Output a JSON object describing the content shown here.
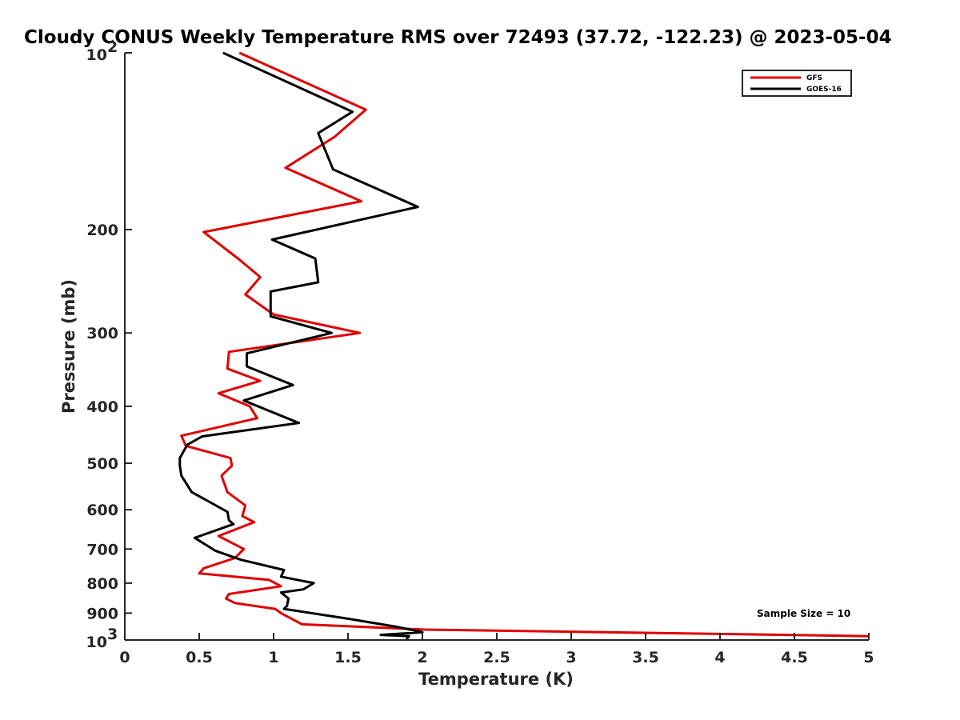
{
  "chart_data": {
    "type": "line",
    "title": "Cloudy CONUS Weekly Temperature RMS over 72493 (37.72, -122.23) @ 2023-05-04",
    "xlabel": "Temperature (K)",
    "ylabel": "Pressure (mb)",
    "xlim": [
      0,
      5
    ],
    "ylim": [
      1000,
      100
    ],
    "y_scale": "log",
    "y_reversed": true,
    "x_ticks": [
      "0",
      "0.5",
      "1",
      "1.5",
      "2",
      "2.5",
      "3",
      "3.5",
      "4",
      "4.5",
      "5"
    ],
    "x_tick_values": [
      0,
      0.5,
      1,
      1.5,
      2,
      2.5,
      3,
      3.5,
      4,
      4.5,
      5
    ],
    "y_ticks": [
      {
        "value": 100,
        "base": "10",
        "exp": "2"
      },
      {
        "value": 200,
        "label": "200"
      },
      {
        "value": 300,
        "label": "300"
      },
      {
        "value": 400,
        "label": "400"
      },
      {
        "value": 500,
        "label": "500"
      },
      {
        "value": 600,
        "label": "600"
      },
      {
        "value": 700,
        "label": "700"
      },
      {
        "value": 800,
        "label": "800"
      },
      {
        "value": 900,
        "label": "900"
      },
      {
        "value": 1000,
        "base": "10",
        "exp": "3"
      }
    ],
    "grid": false,
    "legend_position": "top-right",
    "annotation": "Sample Size = 10",
    "series": [
      {
        "name": "GFS",
        "color": "#e00000",
        "points": [
          [
            0.77,
            100
          ],
          [
            1.62,
            125
          ],
          [
            1.41,
            139
          ],
          [
            1.08,
            157
          ],
          [
            1.59,
            179
          ],
          [
            0.53,
            202
          ],
          [
            0.77,
            225
          ],
          [
            0.91,
            241
          ],
          [
            0.81,
            258
          ],
          [
            1.0,
            279
          ],
          [
            1.58,
            300
          ],
          [
            0.7,
            323
          ],
          [
            0.69,
            345
          ],
          [
            0.91,
            362
          ],
          [
            0.63,
            380
          ],
          [
            0.84,
            400
          ],
          [
            0.89,
            419
          ],
          [
            0.38,
            449
          ],
          [
            0.41,
            467
          ],
          [
            0.71,
            490
          ],
          [
            0.72,
            505
          ],
          [
            0.65,
            525
          ],
          [
            0.69,
            560
          ],
          [
            0.81,
            590
          ],
          [
            0.79,
            615
          ],
          [
            0.87,
            630
          ],
          [
            0.63,
            665
          ],
          [
            0.8,
            700
          ],
          [
            0.74,
            725
          ],
          [
            0.53,
            755
          ],
          [
            0.5,
            770
          ],
          [
            0.97,
            790
          ],
          [
            1.05,
            810
          ],
          [
            0.7,
            835
          ],
          [
            0.68,
            850
          ],
          [
            0.74,
            865
          ],
          [
            1.01,
            885
          ],
          [
            1.05,
            900
          ],
          [
            1.19,
            940
          ],
          [
            2.02,
            960
          ],
          [
            5.0,
            985
          ]
        ]
      },
      {
        "name": "GOES-16",
        "color": "#000000",
        "points": [
          [
            0.66,
            100
          ],
          [
            1.53,
            126
          ],
          [
            1.3,
            137
          ],
          [
            1.4,
            158
          ],
          [
            1.97,
            183
          ],
          [
            0.99,
            208
          ],
          [
            1.28,
            224
          ],
          [
            1.3,
            246
          ],
          [
            0.98,
            255
          ],
          [
            0.98,
            281
          ],
          [
            1.39,
            300
          ],
          [
            0.82,
            325
          ],
          [
            0.82,
            342
          ],
          [
            1.13,
            368
          ],
          [
            0.8,
            391
          ],
          [
            1.17,
            427
          ],
          [
            0.52,
            450
          ],
          [
            0.42,
            465
          ],
          [
            0.37,
            490
          ],
          [
            0.37,
            505
          ],
          [
            0.38,
            525
          ],
          [
            0.45,
            560
          ],
          [
            0.69,
            605
          ],
          [
            0.7,
            625
          ],
          [
            0.73,
            635
          ],
          [
            0.47,
            670
          ],
          [
            0.61,
            705
          ],
          [
            0.78,
            730
          ],
          [
            1.07,
            760
          ],
          [
            1.05,
            780
          ],
          [
            1.27,
            800
          ],
          [
            1.2,
            820
          ],
          [
            1.05,
            830
          ],
          [
            1.1,
            850
          ],
          [
            1.09,
            875
          ],
          [
            1.07,
            885
          ],
          [
            1.5,
            920
          ],
          [
            1.83,
            950
          ],
          [
            2.0,
            970
          ],
          [
            1.72,
            980
          ],
          [
            1.91,
            985
          ],
          [
            1.89,
            1000
          ]
        ]
      }
    ]
  }
}
